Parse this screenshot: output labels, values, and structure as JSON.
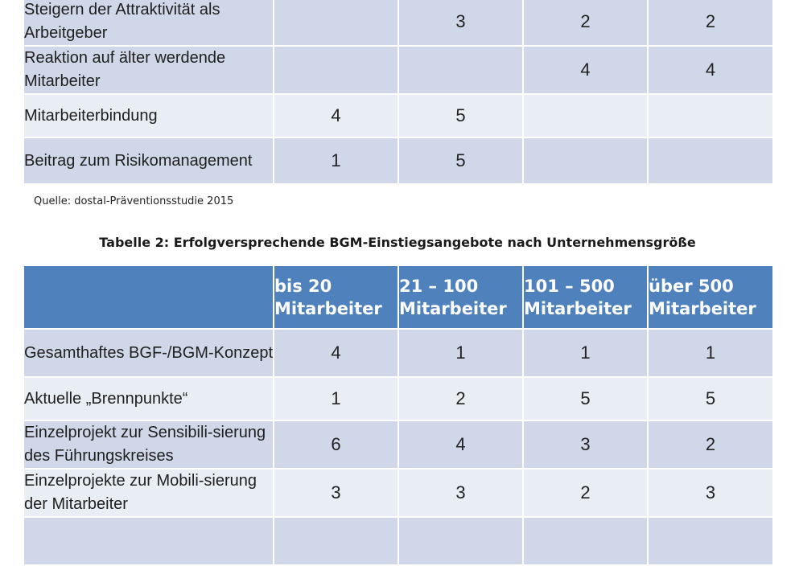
{
  "table1": {
    "rows": [
      {
        "label": "Steigern der Attraktivität als Arbeitgeber",
        "v": [
          "",
          "3",
          "2",
          "2"
        ]
      },
      {
        "label": "Reaktion auf älter werdende Mitarbeiter",
        "v": [
          "",
          "",
          "4",
          "4"
        ]
      },
      {
        "label": "Mitarbeiterbindung",
        "v": [
          "4",
          "5",
          "",
          ""
        ]
      },
      {
        "label": "Beitrag zum Risikomanagement",
        "v": [
          "1",
          "5",
          "",
          ""
        ]
      }
    ]
  },
  "source": "Quelle: dostal-Präventionsstudie 2015",
  "caption": "Tabelle 2: Erfolgversprechende BGM-Einstiegsangebote nach Unternehmensgröße",
  "table2": {
    "headers": [
      "",
      "bis 20 Mitarbeiter",
      "21 – 100 Mitarbeiter",
      "101 – 500 Mitarbeiter",
      "über 500 Mitarbeiter"
    ],
    "rows": [
      {
        "label": "Gesamthaftes BGF-/BGM-Konzept",
        "v": [
          "4",
          "1",
          "1",
          "1"
        ]
      },
      {
        "label": "Aktuelle „Brennpunkte“",
        "v": [
          "1",
          "2",
          "5",
          "5"
        ]
      },
      {
        "label": "Einzelprojekt zur Sensibili-sierung des Führungskreises",
        "v": [
          "6",
          "4",
          "3",
          "2"
        ]
      },
      {
        "label": "Einzelprojekte zur Mobili-sierung der Mitarbeiter",
        "v": [
          "3",
          "3",
          "2",
          "3"
        ]
      },
      {
        "label": "",
        "v": [
          "",
          "",
          "",
          ""
        ]
      }
    ]
  }
}
